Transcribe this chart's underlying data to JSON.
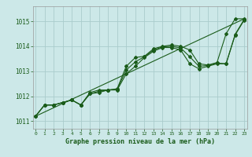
{
  "title": "Graphe pression niveau de la mer (hPa)",
  "bg_color": "#cce8e8",
  "grid_color": "#aacccc",
  "line_color": "#1a5c1a",
  "marker": "D",
  "marker_size": 2,
  "lw": 0.8,
  "xlim": [
    -0.3,
    23.3
  ],
  "ylim": [
    1010.7,
    1015.6
  ],
  "xticks": [
    0,
    1,
    2,
    3,
    4,
    5,
    6,
    7,
    8,
    9,
    10,
    11,
    12,
    13,
    14,
    15,
    16,
    17,
    18,
    19,
    20,
    21,
    22,
    23
  ],
  "yticks": [
    1011,
    1012,
    1013,
    1014,
    1015
  ],
  "series": {
    "max_vals": [
      1011.2,
      1011.65,
      1011.65,
      1011.75,
      1011.85,
      1011.65,
      1012.15,
      1012.25,
      1012.25,
      1012.3,
      1013.2,
      1013.55,
      1013.6,
      1013.9,
      1014.0,
      1014.05,
      1014.0,
      1013.85,
      1013.3,
      1013.25,
      1013.35,
      1014.5,
      1015.1,
      1015.1
    ],
    "min_vals": [
      1011.2,
      1011.65,
      1011.65,
      1011.75,
      1011.85,
      1011.65,
      1012.1,
      1012.15,
      1012.25,
      1012.25,
      1012.9,
      1013.2,
      1013.55,
      1013.8,
      1013.95,
      1013.95,
      1013.85,
      1013.3,
      1013.1,
      1013.2,
      1013.3,
      1013.3,
      1014.45,
      1015.05
    ],
    "avg_vals": [
      1011.2,
      1011.65,
      1011.65,
      1011.75,
      1011.85,
      1011.65,
      1012.1,
      1012.2,
      1012.25,
      1012.28,
      1013.05,
      1013.38,
      1013.58,
      1013.85,
      1013.98,
      1014.0,
      1013.93,
      1013.58,
      1013.2,
      1013.23,
      1013.33,
      1013.3,
      1014.48,
      1015.08
    ],
    "x": [
      0,
      1,
      2,
      3,
      4,
      5,
      6,
      7,
      8,
      9,
      10,
      11,
      12,
      13,
      14,
      15,
      16,
      17,
      18,
      19,
      20,
      21,
      22,
      23
    ]
  },
  "straight_line_x": [
    0,
    23
  ],
  "straight_line_y": [
    1011.2,
    1015.1
  ]
}
